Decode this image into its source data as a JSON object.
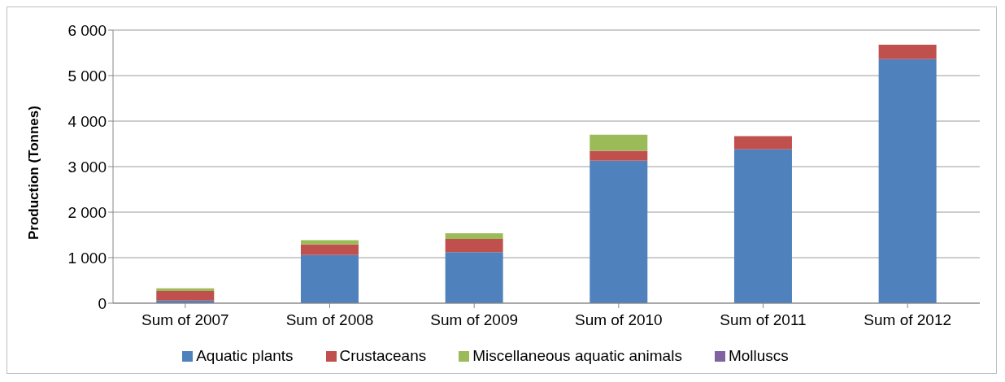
{
  "chart_data": {
    "type": "bar",
    "stacked": true,
    "ylabel": "Production (Tonnes)",
    "categories": [
      "Sum of 2007",
      "Sum of 2008",
      "Sum of 2009",
      "Sum of 2010",
      "Sum of 2011",
      "Sum of 2012"
    ],
    "series": [
      {
        "name": "Aquatic plants",
        "color": "#4f81bd",
        "values": [
          60,
          1060,
          1120,
          3130,
          3380,
          5360
        ]
      },
      {
        "name": "Crustaceans",
        "color": "#c0504d",
        "values": [
          210,
          230,
          290,
          220,
          290,
          320
        ]
      },
      {
        "name": "Miscellaneous aquatic animals",
        "color": "#9bbb59",
        "values": [
          55,
          95,
          125,
          350,
          0,
          0
        ]
      },
      {
        "name": "Molluscs",
        "color": "#8064a2",
        "values": [
          0,
          0,
          0,
          0,
          0,
          0
        ]
      }
    ],
    "ylim": [
      0,
      6000
    ],
    "yticks": [
      0,
      {
        "value": 1000,
        "label": "1 000"
      },
      {
        "value": 2000,
        "label": "2 000"
      },
      {
        "value": 3000,
        "label": "3 000"
      },
      {
        "value": 4000,
        "label": "4 000"
      },
      {
        "value": 5000,
        "label": "5 000"
      },
      {
        "value": 6000,
        "label": "6 000"
      }
    ],
    "grid": "y",
    "legend": "bottom"
  }
}
